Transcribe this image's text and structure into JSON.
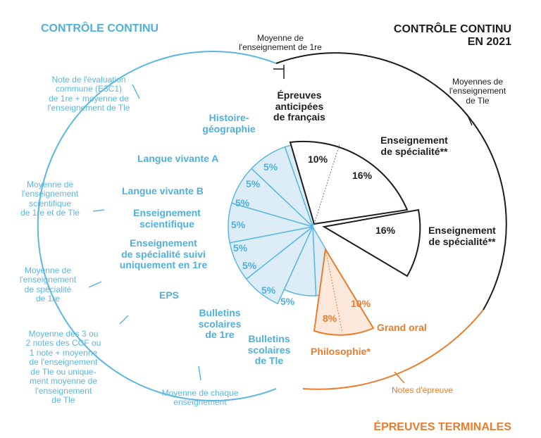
{
  "headings": {
    "left": "CONTRÔLE CONTINU",
    "right_line1": "CONTRÔLE CONTINU",
    "right_line2": "EN 2021",
    "bottom": "ÉPREUVES TERMINALES"
  },
  "annotations": {
    "moyenne_premiere": [
      "Moyenne de",
      "l'enseignement de 1re"
    ],
    "moyennes_tle": [
      "Moyennes de",
      "l'enseignement",
      "de Tle"
    ],
    "e3c1": [
      "Note de l'évaluation",
      "commune (E3C1)",
      "de 1re + moyenne de",
      "l'enseignement de Tle"
    ],
    "scientifique": [
      "Moyenne de",
      "l'enseignement",
      "scientifique",
      "de 1re et de Tle"
    ],
    "specialite": [
      "Moyenne de",
      "l'enseignement",
      "de spécialité",
      "de 1re"
    ],
    "ccf": [
      "Moyenne des 3 ou",
      "2 notes des CCF ou",
      "1 note + moyenne",
      "de l'enseignement",
      "de Tle ou unique-",
      "ment moyenne de",
      "l'enseignement",
      "de Tle"
    ],
    "chaque": [
      "Moyenne de chaque",
      "enseignement"
    ],
    "notes_epreuve": "Notes d'épreuve"
  },
  "subjects": {
    "histoire": [
      "Histoire-",
      "géographie"
    ],
    "lv_a": "Langue vivante A",
    "lv_b": "Langue vivante B",
    "sci": [
      "Enseignement",
      "scientifique"
    ],
    "spe_premiere": [
      "Enseignement",
      "de spécialité suivi",
      "uniquement en 1re"
    ],
    "eps": "EPS",
    "bull_premiere": [
      "Bulletins",
      "scolaires",
      "de 1re"
    ],
    "bull_tle": [
      "Bulletins",
      "scolaires",
      "de Tle"
    ],
    "francais": [
      "Épreuves",
      "anticipées",
      "de français"
    ],
    "spe1": [
      "Enseignement",
      "de spécialité**"
    ],
    "spe2": [
      "Enseignement",
      "de spécialité**"
    ],
    "grand_oral": "Grand oral",
    "philo": "Philosophie*"
  },
  "percentages": {
    "blue": [
      "5%",
      "5%",
      "5%",
      "5%",
      "5%",
      "5%",
      "5%",
      "5%"
    ],
    "francais": "10%",
    "spe1": "16%",
    "spe2": "16%",
    "philo": "8%",
    "grand_oral": "10%"
  },
  "colors": {
    "blue": "#5bb7e2",
    "blue_fill": "#dcedf8",
    "orange": "#ea7c2c",
    "orange_fill": "#fde9dc",
    "dark": "#1d1d1b"
  }
}
